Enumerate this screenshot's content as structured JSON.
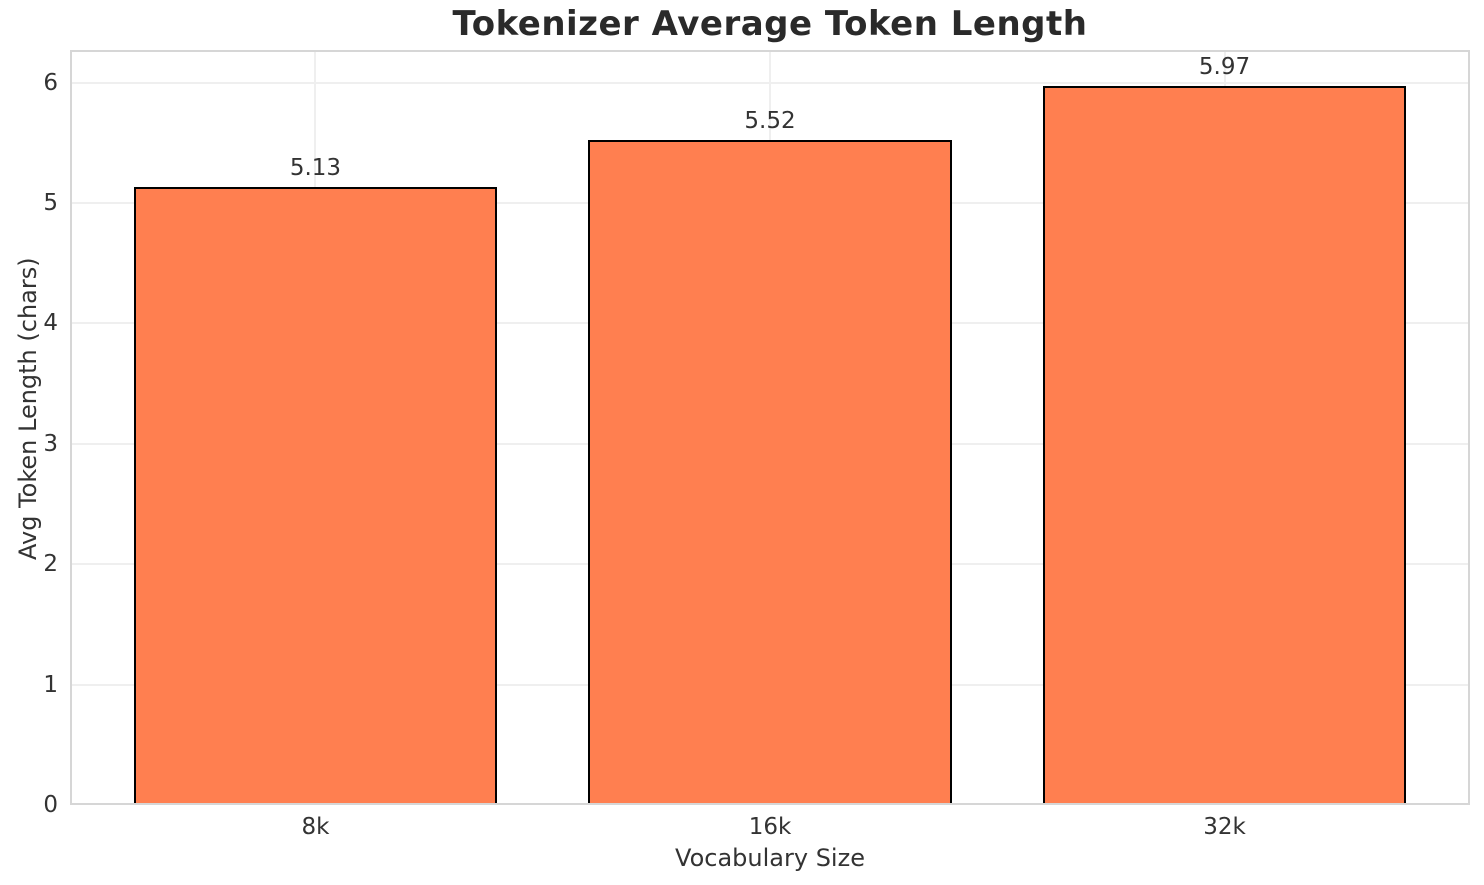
{
  "chart_data": {
    "type": "bar",
    "title": "Tokenizer Average Token Length",
    "categories": [
      "8k",
      "16k",
      "32k"
    ],
    "values": [
      5.13,
      5.52,
      5.97
    ],
    "value_labels": [
      "5.13",
      "5.52",
      "5.97"
    ],
    "xlabel": "Vocabulary Size",
    "ylabel": "Avg Token Length (chars)",
    "ylim": [
      0,
      6.27
    ],
    "yticks": [
      0,
      1,
      2,
      3,
      4,
      5,
      6
    ],
    "xlim": [
      -0.54,
      2.54
    ],
    "bar_width_data_units": 0.8,
    "grid": true,
    "legend": false,
    "bar_color": "#FF7F50",
    "bar_edge_color": "#000000",
    "grid_color": "#efefef",
    "spine_color": "#d6d6d6",
    "text_color": "#333333",
    "title_color": "#2a2a2a",
    "background_color": "#ffffff"
  }
}
